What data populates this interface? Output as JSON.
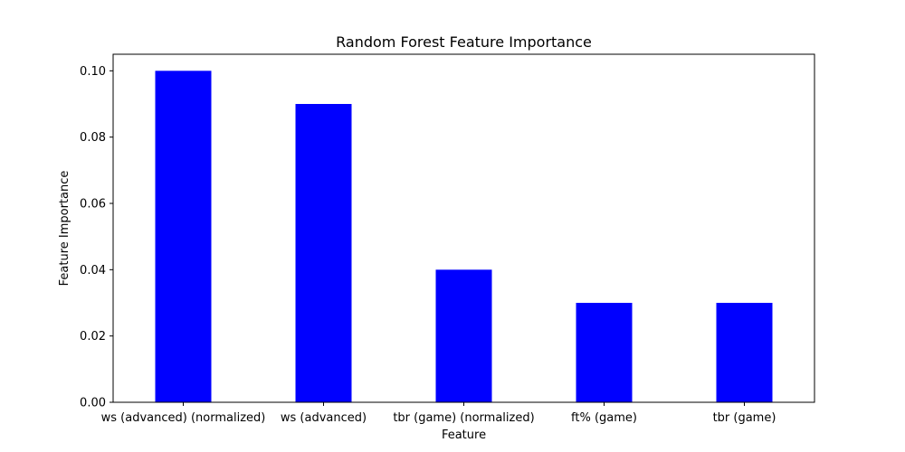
{
  "chart_data": {
    "type": "bar",
    "title": "Random Forest Feature Importance",
    "xlabel": "Feature",
    "ylabel": "Feature Importance",
    "categories": [
      "ws (advanced) (normalized)",
      "ws (advanced)",
      "tbr (game) (normalized)",
      "ft% (game)",
      "tbr (game)"
    ],
    "values": [
      0.1,
      0.09,
      0.04,
      0.03,
      0.03
    ],
    "ylim": [
      0,
      0.105
    ],
    "yticks": [
      0.0,
      0.02,
      0.04,
      0.06,
      0.08,
      0.1
    ],
    "ytick_labels": [
      "0.00",
      "0.02",
      "0.04",
      "0.06",
      "0.08",
      "0.10"
    ],
    "bar_color": "#0000ff",
    "grid": false,
    "legend": false
  }
}
